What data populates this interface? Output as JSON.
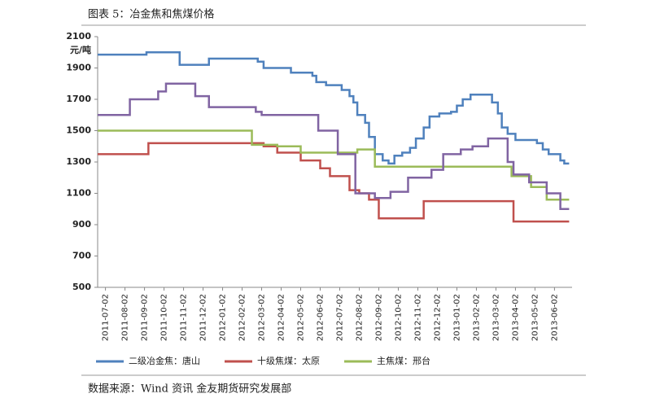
{
  "chart_data": {
    "type": "line",
    "drawstyle": "steps-post",
    "title": "图表 5：冶金焦和焦煤价格",
    "y_label": "元/吨",
    "source": "数据来源：Wind 资讯   金友期货研究发展部",
    "xlim": [
      -0.4,
      23.9
    ],
    "xticks": [
      {
        "value": 0,
        "label": "2011-07-02"
      },
      {
        "value": 1,
        "label": "2011-08-02"
      },
      {
        "value": 2,
        "label": "2011-09-02"
      },
      {
        "value": 3,
        "label": "2011-10-02"
      },
      {
        "value": 4,
        "label": "2011-11-02"
      },
      {
        "value": 5,
        "label": "2011-12-02"
      },
      {
        "value": 6,
        "label": "2012-01-02"
      },
      {
        "value": 7,
        "label": "2012-02-02"
      },
      {
        "value": 8,
        "label": "2012-03-02"
      },
      {
        "value": 9,
        "label": "2012-04-02"
      },
      {
        "value": 10,
        "label": "2012-05-02"
      },
      {
        "value": 11,
        "label": "2012-06-02"
      },
      {
        "value": 12,
        "label": "2012-07-02"
      },
      {
        "value": 13,
        "label": "2012-08-02"
      },
      {
        "value": 14,
        "label": "2012-09-02"
      },
      {
        "value": 15,
        "label": "2012-10-02"
      },
      {
        "value": 16,
        "label": "2012-11-02"
      },
      {
        "value": 17,
        "label": "2012-12-02"
      },
      {
        "value": 18,
        "label": "2013-01-02"
      },
      {
        "value": 19,
        "label": "2013-02-02"
      },
      {
        "value": 20,
        "label": "2013-03-02"
      },
      {
        "value": 21,
        "label": "2013-04-02"
      },
      {
        "value": 22,
        "label": "2013-05-02"
      },
      {
        "value": 23,
        "label": "2013-06-02"
      }
    ],
    "ylim": [
      500,
      2100
    ],
    "yticks": [
      500,
      700,
      900,
      1100,
      1300,
      1500,
      1700,
      1900,
      2100
    ],
    "grid": false,
    "series": [
      {
        "name": "二级冶金焦：唐山",
        "color": "#4f81bd",
        "x": [
          -0.4,
          2.1,
          3.8,
          5.3,
          7.8,
          8.1,
          9.5,
          10.6,
          10.8,
          11.3,
          12.1,
          12.5,
          12.7,
          12.9,
          13.3,
          13.5,
          13.8,
          14.2,
          14.5,
          14.8,
          15.2,
          15.6,
          15.9,
          16.3,
          16.6,
          17.1,
          17.7,
          18,
          18.3,
          18.7,
          19.8,
          20.1,
          20.3,
          20.6,
          21,
          22.1,
          22.4,
          22.7,
          23.3,
          23.5,
          23.75
        ],
        "values": [
          1985,
          2000,
          1920,
          1960,
          1940,
          1900,
          1870,
          1850,
          1810,
          1790,
          1760,
          1720,
          1680,
          1600,
          1550,
          1460,
          1350,
          1310,
          1290,
          1340,
          1360,
          1390,
          1450,
          1520,
          1590,
          1610,
          1620,
          1660,
          1700,
          1730,
          1680,
          1610,
          1520,
          1480,
          1440,
          1420,
          1380,
          1350,
          1310,
          1290,
          1290
        ]
      },
      {
        "name": "十级焦煤：太原",
        "color": "#c0504d",
        "x": [
          -0.4,
          2.2,
          8.1,
          8.8,
          10,
          11,
          11.5,
          12.5,
          13,
          13.5,
          14,
          16.3,
          20.9,
          23.75
        ],
        "values": [
          1350,
          1420,
          1400,
          1360,
          1310,
          1260,
          1210,
          1120,
          1100,
          1060,
          940,
          1050,
          920,
          920
        ]
      },
      {
        "name": "主焦煤：邢台",
        "color": "#9bbb59",
        "x": [
          -0.4,
          7.5,
          8.8,
          10,
          12.9,
          13.8,
          20.8,
          21.8,
          22.6,
          23.75
        ],
        "values": [
          1500,
          1410,
          1400,
          1360,
          1380,
          1270,
          1210,
          1140,
          1060,
          1060
        ]
      },
      {
        "color": "#8064a2",
        "x": [
          -0.4,
          1.25,
          2.7,
          3.1,
          4.6,
          5.3,
          7.7,
          8,
          10.9,
          11.9,
          12.8,
          13.8,
          14.6,
          15.5,
          16.7,
          17.3,
          18.2,
          18.8,
          19.6,
          20.6,
          20.9,
          21.7,
          22.6,
          23.3,
          23.75
        ],
        "values": [
          1600,
          1700,
          1750,
          1800,
          1720,
          1650,
          1620,
          1600,
          1500,
          1350,
          1100,
          1070,
          1110,
          1200,
          1250,
          1350,
          1380,
          1400,
          1450,
          1300,
          1220,
          1170,
          1100,
          1000,
          1000
        ]
      }
    ]
  }
}
